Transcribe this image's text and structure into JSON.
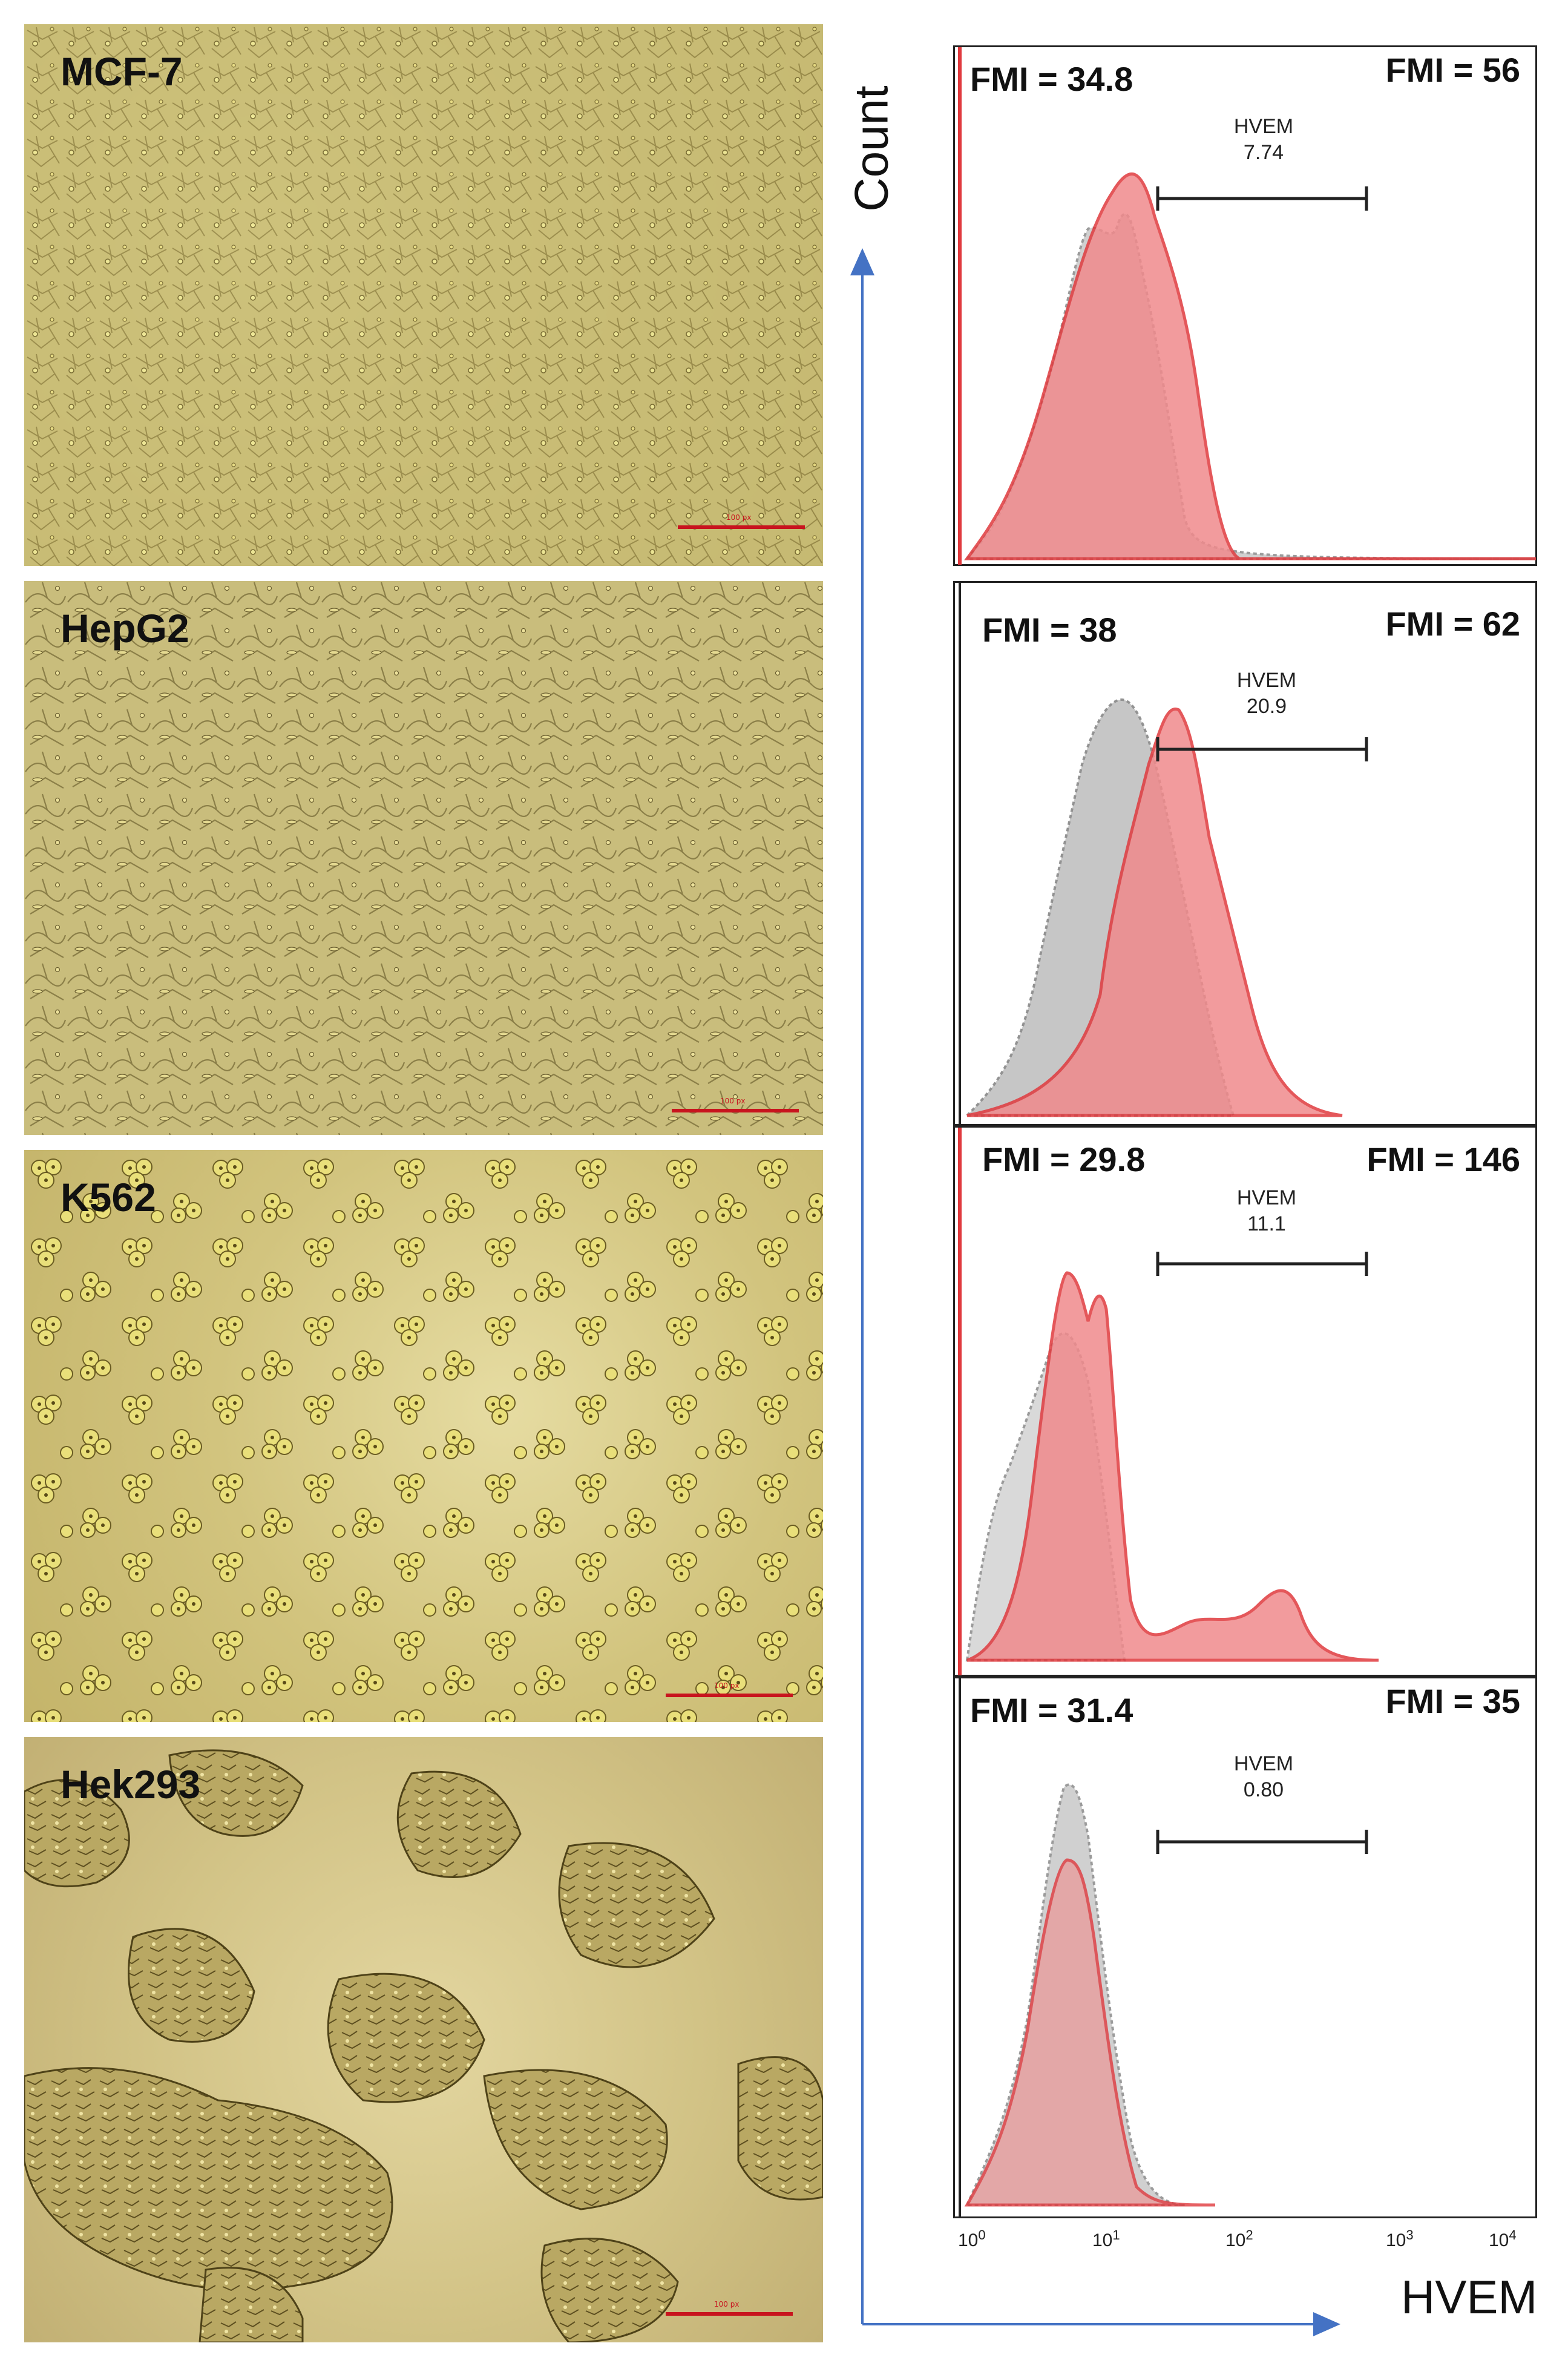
{
  "micrographs": [
    {
      "label": "MCF-7",
      "scalebar_text": "100 px"
    },
    {
      "label": "HepG2",
      "scalebar_text": "100 px"
    },
    {
      "label": "K562",
      "scalebar_text": "100 px"
    },
    {
      "label": "Hek293",
      "scalebar_text": "100 px"
    }
  ],
  "colors": {
    "sample_fill": "#f08a8c",
    "sample_line": "#e03a3e",
    "control_fill": "#bdbdbd",
    "control_line": "#8a8a8a",
    "axis_arrow": "#4472c4",
    "scalebar": "#c8141e"
  },
  "histograms": [
    {
      "cell_line": "MCF-7",
      "fmi_left": "FMI = 34.8",
      "fmi_right": "FMI = 56",
      "gate_name": "HVEM",
      "gate_value": "7.74"
    },
    {
      "cell_line": "HepG2",
      "fmi_left": "FMI = 38",
      "fmi_right": "FMI = 62",
      "gate_name": "HVEM",
      "gate_value": "20.9"
    },
    {
      "cell_line": "K562",
      "fmi_left": "FMI = 29.8",
      "fmi_right": "FMI = 146",
      "gate_name": "HVEM",
      "gate_value": "11.1"
    },
    {
      "cell_line": "Hek293",
      "fmi_left": "FMI = 31.4",
      "fmi_right": "FMI = 35",
      "gate_name": "HVEM",
      "gate_value": "0.80"
    }
  ],
  "axes": {
    "y_title": "Count",
    "x_title": "HVEM",
    "x_ticks": [
      {
        "base": "10",
        "exp": "0"
      },
      {
        "base": "10",
        "exp": "1"
      },
      {
        "base": "10",
        "exp": "2"
      },
      {
        "base": "10",
        "exp": "3"
      },
      {
        "base": "10",
        "exp": "4"
      }
    ]
  }
}
